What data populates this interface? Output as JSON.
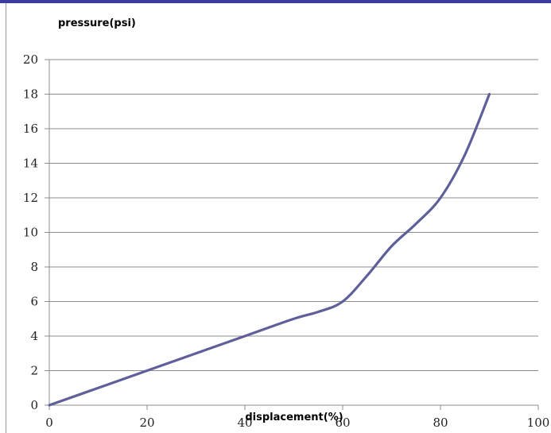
{
  "chart_data": {
    "type": "line",
    "title": "",
    "xlabel": "displacement(%)",
    "ylabel": "pressure(psi)",
    "xlim": [
      0,
      100
    ],
    "ylim": [
      0,
      20
    ],
    "x_ticks": [
      0,
      20,
      40,
      60,
      80,
      100
    ],
    "y_ticks": [
      0,
      2,
      4,
      6,
      8,
      10,
      12,
      14,
      16,
      18,
      20
    ],
    "grid": "horizontal",
    "legend": "none",
    "series": [
      {
        "color": "#5f5f99",
        "points": [
          [
            0,
            0
          ],
          [
            10,
            1
          ],
          [
            20,
            2
          ],
          [
            30,
            3
          ],
          [
            40,
            4
          ],
          [
            50,
            5
          ],
          [
            55,
            5.4
          ],
          [
            60,
            6
          ],
          [
            65,
            7.5
          ],
          [
            70,
            9.2
          ],
          [
            75,
            10.5
          ],
          [
            80,
            12
          ],
          [
            85,
            14.5
          ],
          [
            90,
            18
          ]
        ]
      }
    ]
  },
  "colors": {
    "top_bar": "#3c3c9e",
    "grid": "#8c8c8c",
    "axis": "#8c8c8c"
  }
}
